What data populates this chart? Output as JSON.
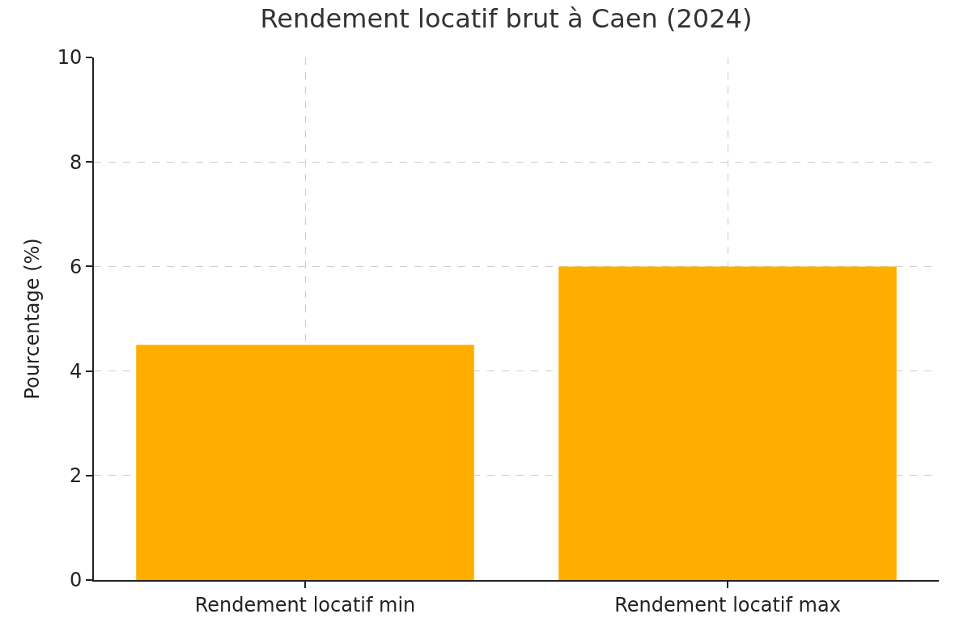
{
  "chart_data": {
    "type": "bar",
    "title": "Rendement locatif brut à Caen (2024)",
    "ylabel": "Pourcentage (%)",
    "categories": [
      "Rendement locatif min",
      "Rendement locatif max"
    ],
    "values": [
      4.5,
      6.0
    ],
    "color": "#ffae00",
    "ylim": [
      0,
      10
    ],
    "yticks": [
      0,
      2,
      4,
      6,
      8,
      10
    ],
    "grid": true
  }
}
